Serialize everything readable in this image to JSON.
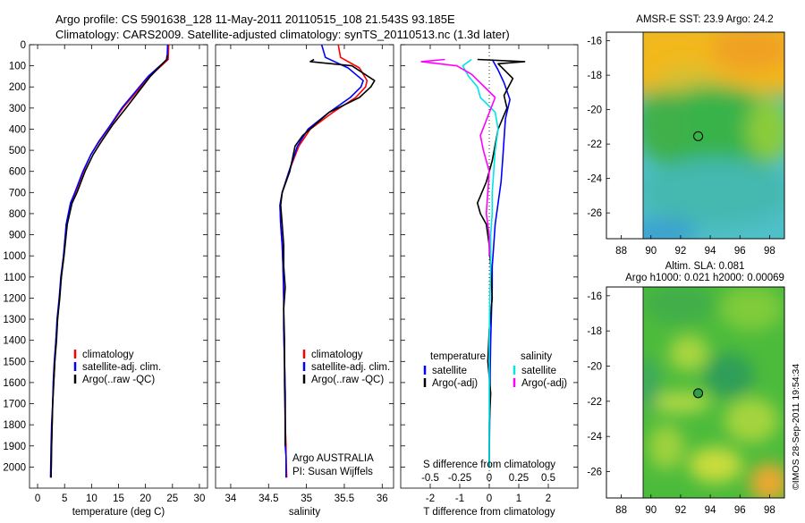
{
  "figure": {
    "title_line1": "Argo profile: CS 5901638_128 11-May-2011 20110515_108 21.543S 93.185E",
    "title_line2": "Climatology: CARS2009. Satellite-adjusted climatology: synTS_20110513.nc (1.3d later)",
    "watermark": "©IMOS 28-Sep-2011 19:54:34"
  },
  "colors": {
    "climatology": "#ff0000",
    "satellite": "#0000ff",
    "argo": "#000000",
    "sal_satellite": "#00e5e5",
    "sal_argo": "#ff00ff"
  },
  "chart_data": [
    {
      "type": "line",
      "xlabel": "temperature (deg C)",
      "ylim": [
        2100,
        0
      ],
      "xlim": [
        -1.5,
        31.5
      ],
      "xticks": [
        "0",
        "5",
        "10",
        "15",
        "20",
        "25",
        "30"
      ],
      "yticks": [
        "0",
        "100",
        "200",
        "300",
        "400",
        "500",
        "600",
        "700",
        "800",
        "900",
        "1000",
        "1100",
        "1200",
        "1300",
        "1400",
        "1500",
        "1600",
        "1700",
        "1800",
        "1900",
        "2000"
      ],
      "legend_location": "lower-middle",
      "series": [
        {
          "name": "climatology",
          "color": "#ff0000",
          "x": [
            24.3,
            24.2,
            20.8,
            15.8,
            13.6,
            11.4,
            9.9,
            8.5,
            7.0,
            6.2,
            5.4,
            4.8,
            4.4,
            4.0,
            3.7,
            3.4,
            3.2,
            3.0,
            2.8,
            2.7,
            2.6,
            2.5
          ],
          "y": [
            0,
            70,
            150,
            300,
            380,
            460,
            520,
            600,
            700,
            750,
            850,
            1000,
            1100,
            1200,
            1300,
            1400,
            1500,
            1600,
            1700,
            1800,
            1900,
            2050
          ]
        },
        {
          "name": "satellite-adj. clim.",
          "color": "#0000ff",
          "x": [
            24.1,
            24.0,
            20.5,
            15.6,
            13.5,
            11.3,
            9.9,
            8.4,
            6.9,
            6.1,
            5.3,
            4.8,
            4.3,
            4.0,
            3.6,
            3.4,
            3.1,
            2.9,
            2.8,
            2.6,
            2.5,
            2.4
          ],
          "y": [
            0,
            70,
            150,
            300,
            380,
            460,
            520,
            600,
            700,
            750,
            850,
            1000,
            1100,
            1200,
            1300,
            1400,
            1500,
            1600,
            1700,
            1800,
            1900,
            2050
          ]
        },
        {
          "name": "Argo(..raw -QC)",
          "color": "#000000",
          "x": [
            24.0,
            23.9,
            20.9,
            16.4,
            13.9,
            11.8,
            10.3,
            8.8,
            7.3,
            6.4,
            5.5,
            4.9,
            4.4,
            4.1,
            3.7,
            3.5,
            3.2,
            3.0,
            2.8,
            2.7,
            2.6,
            2.5
          ],
          "y": [
            50,
            70,
            150,
            300,
            380,
            460,
            520,
            600,
            700,
            750,
            850,
            1000,
            1100,
            1200,
            1300,
            1400,
            1500,
            1600,
            1700,
            1800,
            1900,
            2050
          ]
        }
      ]
    },
    {
      "type": "line",
      "xlabel": "salinity",
      "ylim": [
        2100,
        0
      ],
      "xlim": [
        33.8,
        36.15
      ],
      "xticks": [
        "34",
        "34.5",
        "35",
        "35.5",
        "36"
      ],
      "legend_location": "lower-middle",
      "annotations": [
        "Argo AUSTRALIA",
        "PI: Susan Wijffels"
      ],
      "series": [
        {
          "name": "climatology",
          "color": "#ff0000",
          "x": [
            35.42,
            35.45,
            35.7,
            35.8,
            35.78,
            35.65,
            35.35,
            35.05,
            34.9,
            34.77,
            34.68,
            34.65,
            34.66,
            34.68,
            34.69,
            34.7,
            34.7,
            34.71,
            34.72,
            34.72,
            34.73,
            34.73,
            34.74
          ],
          "y": [
            0,
            60,
            110,
            170,
            200,
            250,
            320,
            400,
            480,
            600,
            700,
            760,
            850,
            950,
            1050,
            1200,
            1350,
            1500,
            1650,
            1800,
            1900,
            1950,
            2050
          ]
        },
        {
          "name": "satellite-adj. clim.",
          "color": "#0000ff",
          "x": [
            35.2,
            35.25,
            35.55,
            35.75,
            35.72,
            35.58,
            35.3,
            35.02,
            34.88,
            34.77,
            34.68,
            34.65,
            34.66,
            34.68,
            34.69,
            34.7,
            34.7,
            34.71,
            34.72,
            34.72,
            34.72,
            34.73,
            34.73
          ],
          "y": [
            0,
            60,
            110,
            170,
            200,
            250,
            320,
            400,
            480,
            600,
            700,
            760,
            850,
            950,
            1050,
            1200,
            1350,
            1500,
            1650,
            1800,
            1900,
            1950,
            2050
          ]
        },
        {
          "name": "Argo(..raw -QC)",
          "color": "#000000",
          "x": [
            35.1,
            35.05,
            35.6,
            35.9,
            35.85,
            35.7,
            35.3,
            34.95,
            34.85,
            34.78,
            34.68,
            34.66,
            34.68,
            34.7,
            34.7,
            34.72,
            34.7,
            34.71,
            34.71,
            34.72,
            34.72
          ],
          "y": [
            70,
            80,
            100,
            170,
            200,
            250,
            320,
            430,
            480,
            600,
            700,
            760,
            850,
            950,
            1050,
            1150,
            1250,
            1400,
            1600,
            1800,
            1900
          ]
        }
      ]
    },
    {
      "type": "line",
      "xlabel": "T difference from climatology",
      "top_axis_label": "S difference from climatology",
      "ylim": [
        2100,
        0
      ],
      "xlim": [
        -3.0,
        3.0
      ],
      "xticks": [
        "-2",
        "-1",
        "0",
        "1",
        "2"
      ],
      "top_xticks": [
        "-0.5",
        "-0.25",
        "0",
        "0.25",
        "0.5"
      ],
      "legend_titles": [
        "temperature",
        "salinity"
      ],
      "series": [
        {
          "name": "satellite",
          "group": "temperature",
          "color": "#0000ff",
          "x": [
            0.1,
            0.3,
            0.5,
            0.7,
            0.55,
            0.5,
            0.45,
            0.4,
            0.3,
            0.2,
            0.15,
            0.1,
            0.1,
            0.08,
            0.05,
            0.03,
            0.02,
            0.01,
            0.0,
            0.0
          ],
          "y": [
            70,
            120,
            180,
            260,
            350,
            450,
            550,
            650,
            750,
            850,
            950,
            1050,
            1150,
            1250,
            1400,
            1550,
            1700,
            1850,
            1950,
            2000
          ]
        },
        {
          "name": "Argo(-adj)",
          "group": "temperature",
          "color": "#000000",
          "x": [
            -0.4,
            1.2,
            0.3,
            0.8,
            0.5,
            0.6,
            0.3,
            0.1,
            -0.1,
            -0.4,
            -0.3,
            -0.1,
            0.0,
            0.05,
            0.1,
            0.0,
            -0.05,
            0.05,
            0.0,
            0.0,
            0.0
          ],
          "y": [
            70,
            80,
            90,
            160,
            240,
            300,
            400,
            550,
            650,
            750,
            800,
            850,
            950,
            1050,
            1200,
            1350,
            1500,
            1650,
            1800,
            1900,
            2000
          ]
        },
        {
          "name": "satellite",
          "group": "salinity",
          "color": "#00e5e5",
          "x": [
            -0.6,
            -0.9,
            -0.7,
            -0.4,
            -0.3,
            0.2,
            0.3,
            0.2,
            0.15,
            0.1,
            0.1,
            0.05,
            0.05,
            0.02,
            0.0,
            0.0,
            0.0,
            0.0
          ],
          "y": [
            70,
            100,
            150,
            200,
            250,
            320,
            400,
            500,
            600,
            700,
            800,
            900,
            1050,
            1200,
            1400,
            1600,
            1800,
            2000
          ]
        },
        {
          "name": "Argo(-adj)",
          "group": "salinity",
          "color": "#ff00ff",
          "x": [
            -1.5,
            -2.3,
            -1.1,
            -0.6,
            0.2,
            -0.3,
            -0.2,
            0.0,
            -0.1,
            0.0,
            0.0
          ],
          "y": [
            70,
            80,
            100,
            140,
            250,
            430,
            500,
            600,
            800,
            900,
            1000
          ]
        }
      ]
    },
    {
      "type": "heatmap",
      "title": "AMSR-E SST: 23.9  Argo: 24.2",
      "xlim": [
        87,
        99
      ],
      "ylim": [
        -27.5,
        -15.5
      ],
      "xticks": [
        "88",
        "90",
        "92",
        "94",
        "96",
        "98"
      ],
      "yticks": [
        "-16",
        "-18",
        "-20",
        "-22",
        "-24",
        "-26"
      ],
      "data_extent_x": [
        90,
        99
      ],
      "marker": {
        "lon": 93.185,
        "lat": -21.543
      }
    },
    {
      "type": "heatmap",
      "title_line1": "Altim. SLA: 0.081",
      "title_line2": "Argo h1000: 0.021 h2000: 0.00069",
      "xlim": [
        87,
        99
      ],
      "ylim": [
        -27.5,
        -15.5
      ],
      "xticks": [
        "88",
        "90",
        "92",
        "94",
        "96",
        "98"
      ],
      "yticks": [
        "-16",
        "-18",
        "-20",
        "-22",
        "-24",
        "-26"
      ],
      "data_extent_x": [
        90,
        99
      ],
      "marker": {
        "lon": 93.185,
        "lat": -21.543
      }
    }
  ]
}
